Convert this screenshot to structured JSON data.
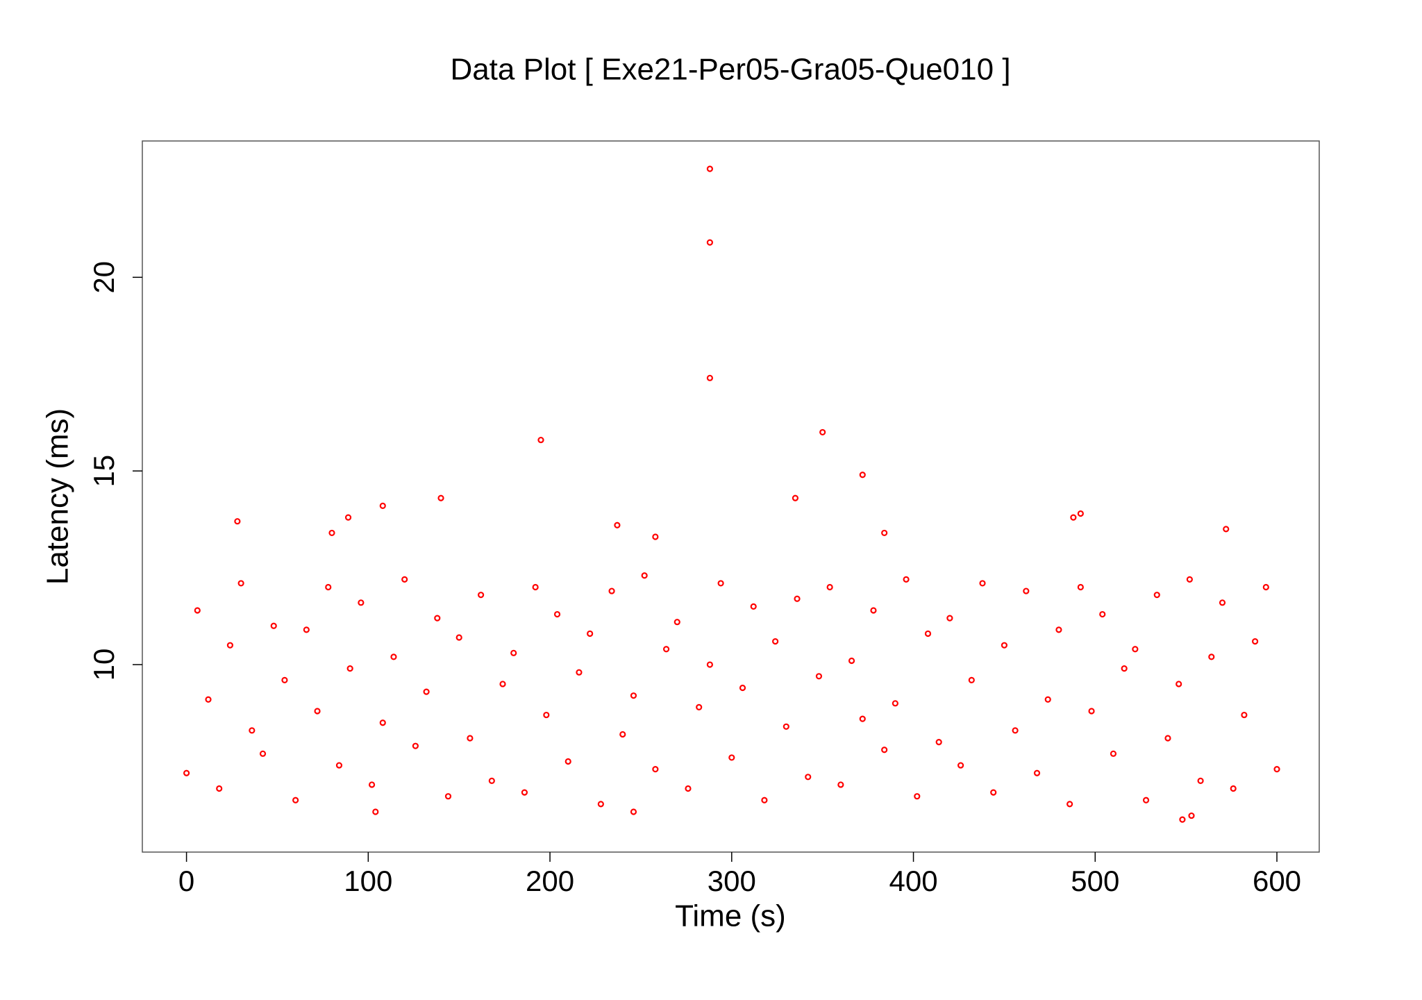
{
  "chart_data": {
    "type": "scatter",
    "title": "Data Plot [ Exe21-Per05-Gra05-Que010 ]",
    "x_label": "Time (s)",
    "y_label": "Latency (ms)",
    "color": "#ff0000",
    "x": [
      0,
      6,
      12,
      18,
      24,
      30,
      36,
      42,
      48,
      54,
      60,
      66,
      72,
      78,
      84,
      90,
      96,
      102,
      108,
      114,
      120,
      126,
      132,
      138,
      144,
      150,
      156,
      162,
      168,
      174,
      180,
      186,
      192,
      198,
      204,
      210,
      216,
      222,
      228,
      234,
      240,
      246,
      252,
      258,
      264,
      270,
      276,
      282,
      288,
      294,
      300,
      306,
      312,
      318,
      324,
      330,
      336,
      342,
      348,
      354,
      360,
      366,
      372,
      378,
      384,
      390,
      396,
      402,
      408,
      414,
      420,
      426,
      432,
      438,
      444,
      450,
      456,
      462,
      468,
      474,
      480,
      486,
      492,
      498,
      504,
      510,
      516,
      522,
      528,
      534,
      540,
      546,
      552,
      558,
      564,
      570,
      576,
      582,
      588,
      594,
      600,
      288,
      288,
      288,
      195,
      350,
      372,
      335,
      140,
      108,
      28,
      89,
      492,
      488,
      572,
      237,
      258,
      384,
      80,
      548,
      553,
      246,
      104
    ],
    "values": [
      7.2,
      11.4,
      9.1,
      6.8,
      10.5,
      12.1,
      8.3,
      7.7,
      11.0,
      9.6,
      6.5,
      10.9,
      8.8,
      12.0,
      7.4,
      9.9,
      11.6,
      6.9,
      8.5,
      10.2,
      12.2,
      7.9,
      9.3,
      11.2,
      6.6,
      10.7,
      8.1,
      11.8,
      7.0,
      9.5,
      10.3,
      6.7,
      12.0,
      8.7,
      11.3,
      7.5,
      9.8,
      10.8,
      6.4,
      11.9,
      8.2,
      9.2,
      12.3,
      7.3,
      10.4,
      11.1,
      6.8,
      8.9,
      10.0,
      12.1,
      7.6,
      9.4,
      11.5,
      6.5,
      10.6,
      8.4,
      11.7,
      7.1,
      9.7,
      12.0,
      6.9,
      10.1,
      8.6,
      11.4,
      7.8,
      9.0,
      12.2,
      6.6,
      10.8,
      8.0,
      11.2,
      7.4,
      9.6,
      12.1,
      6.7,
      10.5,
      8.3,
      11.9,
      7.2,
      9.1,
      10.9,
      6.4,
      12.0,
      8.8,
      11.3,
      7.7,
      9.9,
      10.4,
      6.5,
      11.8,
      8.1,
      9.5,
      12.2,
      7.0,
      10.2,
      11.6,
      6.8,
      8.7,
      10.6,
      12.0,
      7.3,
      22.8,
      20.9,
      17.4,
      15.8,
      16.0,
      14.9,
      14.3,
      14.3,
      14.1,
      13.7,
      13.8,
      13.9,
      13.8,
      13.5,
      13.6,
      13.3,
      13.4,
      13.4,
      6.0,
      6.1,
      6.2,
      6.2
    ],
    "xlim": [
      -24.3,
      623.3
    ],
    "ylim": [
      5.16,
      23.52
    ],
    "xticks": [
      0,
      100,
      200,
      300,
      400,
      500,
      600
    ],
    "yticks": [
      10,
      15,
      20
    ]
  }
}
